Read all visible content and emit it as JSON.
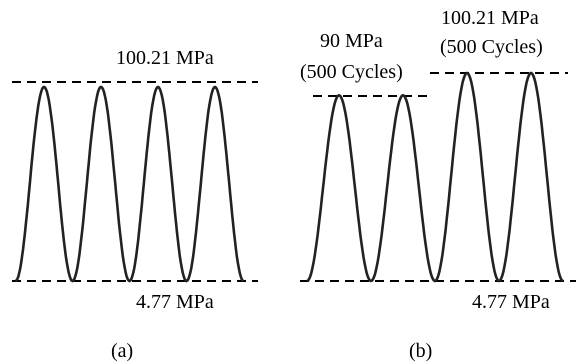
{
  "panel_a": {
    "caption": "(a)",
    "max_label": "100.21 MPa",
    "min_label": "4.77 MPa",
    "max_stress_mpa": 100.21,
    "min_stress_mpa": 4.77,
    "cycles_shown": 4
  },
  "panel_b": {
    "caption": "(b)",
    "min_label": "4.77 MPa",
    "min_stress_mpa": 4.77,
    "blocks": [
      {
        "label_line1": "90 MPa",
        "label_line2": "(500 Cycles)",
        "max_stress_mpa": 90,
        "cycles_shown": 2
      },
      {
        "label_line1": "100.21 MPa",
        "label_line2": "(500 Cycles)",
        "max_stress_mpa": 100.21,
        "cycles_shown": 2
      }
    ]
  }
}
